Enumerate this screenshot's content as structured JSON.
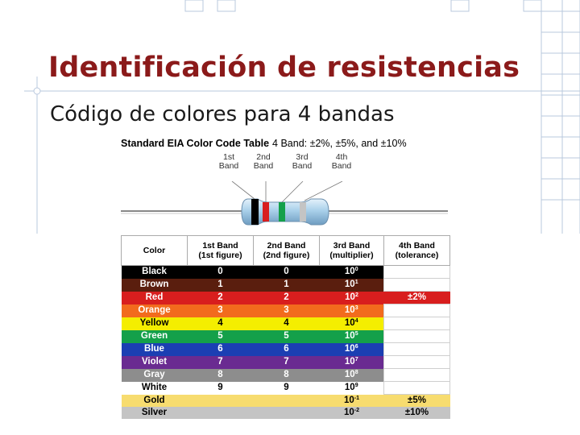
{
  "slide": {
    "title": "Identificación de resistencias",
    "subtitle": "Código de colores para 4 bandas"
  },
  "figure": {
    "heading_bold": "Standard EIA Color Code Table",
    "heading_normal": "4 Band: ±2%, ±5%, and ±10%",
    "band_labels": [
      {
        "line1": "1st",
        "line2": "Band"
      },
      {
        "line1": "2nd",
        "line2": "Band"
      },
      {
        "line1": "3rd",
        "line2": "Band"
      },
      {
        "line1": "4th",
        "line2": "Band"
      }
    ]
  },
  "table": {
    "headers": [
      {
        "line1": "Color",
        "line2": ""
      },
      {
        "line1": "1st Band",
        "line2": "(1st figure)"
      },
      {
        "line1": "2nd Band",
        "line2": "(2nd figure)"
      },
      {
        "line1": "3rd Band",
        "line2": "(multiplier)"
      },
      {
        "line1": "4th Band",
        "line2": "(tolerance)"
      }
    ],
    "rows": [
      {
        "name": "Black",
        "bg": "#000000",
        "fg": "#ffffff",
        "first": "0",
        "second": "0",
        "mult_base": "10",
        "mult_exp": "0",
        "tol": ""
      },
      {
        "name": "Brown",
        "bg": "#5a1e0e",
        "fg": "#ffffff",
        "first": "1",
        "second": "1",
        "mult_base": "10",
        "mult_exp": "1",
        "tol": ""
      },
      {
        "name": "Red",
        "bg": "#d81e1e",
        "fg": "#ffffff",
        "first": "2",
        "second": "2",
        "mult_base": "10",
        "mult_exp": "2",
        "tol": "±2%",
        "tol_bg": "#d81e1e",
        "tol_fg": "#ffffff"
      },
      {
        "name": "Orange",
        "bg": "#f26b1d",
        "fg": "#ffffff",
        "first": "3",
        "second": "3",
        "mult_base": "10",
        "mult_exp": "3",
        "tol": ""
      },
      {
        "name": "Yellow",
        "bg": "#f4ee00",
        "fg": "#000000",
        "first": "4",
        "second": "4",
        "mult_base": "10",
        "mult_exp": "4",
        "tol": ""
      },
      {
        "name": "Green",
        "bg": "#14a04a",
        "fg": "#ffffff",
        "first": "5",
        "second": "5",
        "mult_base": "10",
        "mult_exp": "5",
        "tol": ""
      },
      {
        "name": "Blue",
        "bg": "#1b3fb3",
        "fg": "#ffffff",
        "first": "6",
        "second": "6",
        "mult_base": "10",
        "mult_exp": "6",
        "tol": ""
      },
      {
        "name": "Violet",
        "bg": "#6a2b91",
        "fg": "#ffffff",
        "first": "7",
        "second": "7",
        "mult_base": "10",
        "mult_exp": "7",
        "tol": ""
      },
      {
        "name": "Gray",
        "bg": "#8d8d8d",
        "fg": "#ffffff",
        "first": "8",
        "second": "8",
        "mult_base": "10",
        "mult_exp": "8",
        "tol": ""
      },
      {
        "name": "White",
        "bg": "#ffffff",
        "fg": "#000000",
        "first": "9",
        "second": "9",
        "mult_base": "10",
        "mult_exp": "9",
        "tol": ""
      },
      {
        "name": "Gold",
        "bg": "#f7dc6f",
        "fg": "#000000",
        "first": "",
        "second": "",
        "mult_base": "10",
        "mult_exp": "-1",
        "tol": "±5%",
        "tol_bg": "#f7dc6f",
        "tol_fg": "#000000"
      },
      {
        "name": "Silver",
        "bg": "#c4c4c4",
        "fg": "#000000",
        "first": "",
        "second": "",
        "mult_base": "10",
        "mult_exp": "-2",
        "tol": "±10%",
        "tol_bg": "#c4c4c4",
        "tol_fg": "#000000"
      }
    ]
  },
  "colors": {
    "title": "#8b1a1a",
    "deco_line": "#b9c9de",
    "resistor_body": "#a9d0ea",
    "resistor_bands": [
      "#000000",
      "#d81e1e",
      "#14a04a",
      "#c4c4c4"
    ]
  }
}
